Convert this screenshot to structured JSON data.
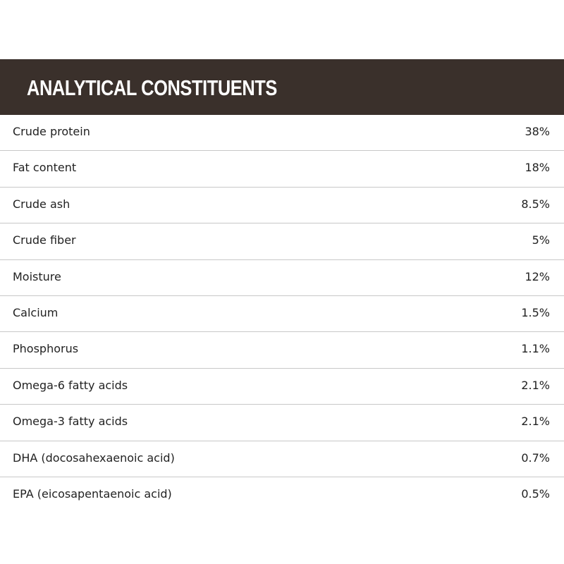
{
  "header": {
    "title": "ANALYTICAL CONSTITUENTS"
  },
  "table": {
    "rows": [
      [
        "Crude protein",
        "38%"
      ],
      [
        "Fat content",
        "18%"
      ],
      [
        "Crude ash",
        "8.5%"
      ],
      [
        "Crude fiber",
        "5%"
      ],
      [
        "Moisture",
        "12%"
      ],
      [
        "Calcium",
        "1.5%"
      ],
      [
        "Phosphorus",
        "1.1%"
      ],
      [
        "Omega-6 fatty acids",
        "2.1%"
      ],
      [
        "Omega-3 fatty acids",
        "2.1%"
      ],
      [
        "DHA (docosahexaenoic acid)",
        "0.7%"
      ],
      [
        "EPA (eicosapentaenoic acid)",
        "0.5%"
      ]
    ]
  }
}
